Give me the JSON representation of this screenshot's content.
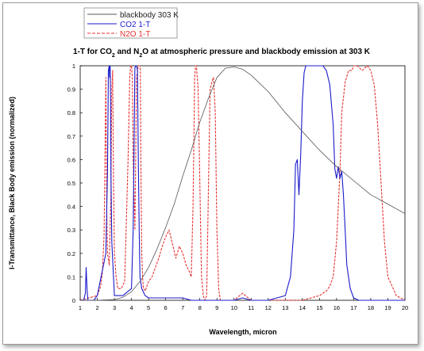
{
  "chart_data": {
    "type": "line",
    "title_parts": [
      {
        "t": "1-T for CO",
        "sub": false
      },
      {
        "t": "2",
        "sub": true
      },
      {
        "t": " and N",
        "sub": false
      },
      {
        "t": "2",
        "sub": true
      },
      {
        "t": "O at atmospheric pressure and blackbody emission at 303 K",
        "sub": false
      }
    ],
    "xlabel": "Wavelength, micron",
    "ylabel": "I-Transmittance, Black Body emission (normalized)",
    "xlim": [
      1,
      20
    ],
    "ylim": [
      0,
      1
    ],
    "xticks": [
      "1",
      "2",
      "3",
      "4",
      "5",
      "6",
      "7",
      "8",
      "9",
      "10",
      "11",
      "12",
      "13",
      "14",
      "15",
      "16",
      "17",
      "18",
      "19",
      "20"
    ],
    "yticks": [
      "0",
      "0.1",
      "0.2",
      "0.3",
      "0.4",
      "0.5",
      "0.6",
      "0.7",
      "0.8",
      "0.9",
      "1"
    ],
    "grid": false,
    "legend_position": "top-left (outside plot)",
    "series": [
      {
        "name": "blackbody 303 K",
        "color": "#555555",
        "style": "solid",
        "x": [
          1.0,
          2.0,
          3.0,
          3.5,
          4.0,
          4.5,
          5.0,
          5.5,
          6.0,
          6.5,
          7.0,
          7.5,
          8.0,
          8.5,
          9.0,
          9.5,
          10.0,
          10.5,
          11.0,
          12.0,
          13.0,
          14.0,
          15.0,
          16.0,
          17.0,
          18.0,
          19.0,
          20.0
        ],
        "y": [
          0.0,
          0.0,
          0.003,
          0.013,
          0.036,
          0.08,
          0.14,
          0.22,
          0.31,
          0.41,
          0.53,
          0.64,
          0.76,
          0.86,
          0.95,
          0.99,
          0.995,
          0.985,
          0.96,
          0.89,
          0.8,
          0.72,
          0.64,
          0.57,
          0.51,
          0.45,
          0.41,
          0.37
        ]
      },
      {
        "name": "CO2 1-T",
        "color": "#1a1acc",
        "style": "solid",
        "x": [
          1.0,
          1.2,
          1.3,
          1.35,
          1.4,
          1.45,
          1.5,
          1.6,
          1.8,
          2.0,
          2.5,
          2.6,
          2.65,
          2.7,
          2.72,
          2.75,
          2.78,
          2.8,
          2.85,
          3.0,
          3.5,
          4.0,
          4.1,
          4.2,
          4.25,
          4.3,
          4.35,
          4.4,
          4.45,
          4.5,
          4.6,
          4.8,
          5.0,
          6.0,
          7.0,
          7.5,
          8.0,
          9.0,
          10.0,
          10.5,
          11.0,
          12.0,
          13.0,
          13.3,
          13.5,
          13.6,
          13.7,
          13.8,
          13.9,
          14.0,
          14.1,
          14.2,
          14.3,
          14.5,
          14.7,
          14.9,
          15.0,
          15.2,
          15.4,
          15.6,
          15.8,
          15.9,
          16.0,
          16.1,
          16.2,
          16.3,
          16.4,
          16.5,
          16.6,
          16.8,
          17.0,
          17.3,
          17.5,
          18.0,
          19.0,
          20.0
        ],
        "y": [
          0.0,
          0.0,
          0.03,
          0.14,
          0.05,
          0.0,
          0.0,
          0.0,
          0.0,
          0.02,
          0.2,
          0.55,
          0.98,
          1.0,
          0.95,
          1.0,
          0.85,
          0.55,
          0.25,
          0.02,
          0.02,
          0.05,
          0.3,
          0.99,
          1.0,
          1.0,
          0.98,
          0.6,
          0.3,
          0.1,
          0.05,
          0.02,
          0.01,
          0.01,
          0.01,
          0.0,
          0.0,
          0.0,
          0.0,
          0.01,
          0.0,
          0.0,
          0.02,
          0.1,
          0.3,
          0.58,
          0.6,
          0.45,
          0.62,
          0.85,
          0.97,
          1.0,
          1.0,
          1.0,
          1.0,
          1.0,
          1.0,
          1.0,
          0.98,
          0.92,
          0.75,
          0.56,
          0.52,
          0.57,
          0.52,
          0.55,
          0.45,
          0.3,
          0.15,
          0.05,
          0.01,
          0.0,
          0.0,
          0.0,
          0.0,
          0.0
        ]
      },
      {
        "name": "N2O 1-T",
        "color": "#e63030",
        "style": "dashed",
        "x": [
          1.0,
          2.0,
          2.2,
          2.3,
          2.4,
          2.45,
          2.5,
          2.55,
          2.6,
          2.7,
          2.8,
          2.85,
          2.9,
          2.95,
          3.0,
          3.1,
          3.2,
          3.4,
          3.6,
          3.8,
          3.9,
          3.95,
          4.0,
          4.05,
          4.1,
          4.2,
          4.3,
          4.4,
          4.5,
          4.52,
          4.55,
          4.6,
          4.65,
          4.7,
          4.8,
          4.9,
          5.0,
          5.2,
          5.4,
          5.6,
          5.8,
          6.0,
          6.2,
          6.4,
          6.6,
          6.8,
          7.0,
          7.2,
          7.4,
          7.5,
          7.6,
          7.7,
          7.75,
          7.8,
          7.9,
          8.0,
          8.1,
          8.2,
          8.3,
          8.4,
          8.5,
          8.6,
          8.7,
          8.8,
          8.9,
          9.0,
          9.1,
          9.2,
          9.5,
          10.0,
          10.5,
          11.0,
          12.0,
          13.0,
          14.0,
          15.0,
          15.4,
          15.6,
          15.8,
          16.0,
          16.2,
          16.3,
          16.5,
          16.7,
          16.9,
          17.0,
          17.2,
          17.5,
          17.8,
          18.0,
          18.2,
          18.4,
          18.6,
          18.8,
          19.0,
          19.5,
          20.0
        ],
        "y": [
          0.0,
          0.02,
          0.06,
          0.12,
          0.28,
          0.6,
          0.95,
          0.4,
          0.2,
          0.15,
          0.45,
          0.9,
          0.98,
          0.5,
          0.2,
          0.1,
          0.05,
          0.05,
          0.08,
          0.6,
          0.95,
          1.0,
          1.0,
          0.95,
          0.6,
          0.3,
          0.95,
          1.0,
          1.0,
          0.98,
          0.6,
          0.2,
          0.1,
          0.05,
          0.04,
          0.06,
          0.08,
          0.1,
          0.14,
          0.18,
          0.23,
          0.27,
          0.3,
          0.24,
          0.18,
          0.23,
          0.2,
          0.15,
          0.12,
          0.1,
          0.4,
          0.95,
          1.0,
          1.0,
          0.9,
          0.5,
          0.1,
          0.02,
          0.0,
          0.02,
          0.45,
          0.9,
          0.93,
          0.95,
          0.8,
          0.3,
          0.05,
          0.0,
          0.0,
          0.0,
          0.03,
          0.0,
          0.0,
          0.0,
          0.0,
          0.02,
          0.04,
          0.06,
          0.1,
          0.25,
          0.55,
          0.8,
          0.93,
          0.98,
          0.98,
          1.0,
          1.0,
          0.98,
          1.0,
          0.98,
          0.92,
          0.75,
          0.5,
          0.25,
          0.1,
          0.02,
          0.0
        ]
      }
    ]
  }
}
